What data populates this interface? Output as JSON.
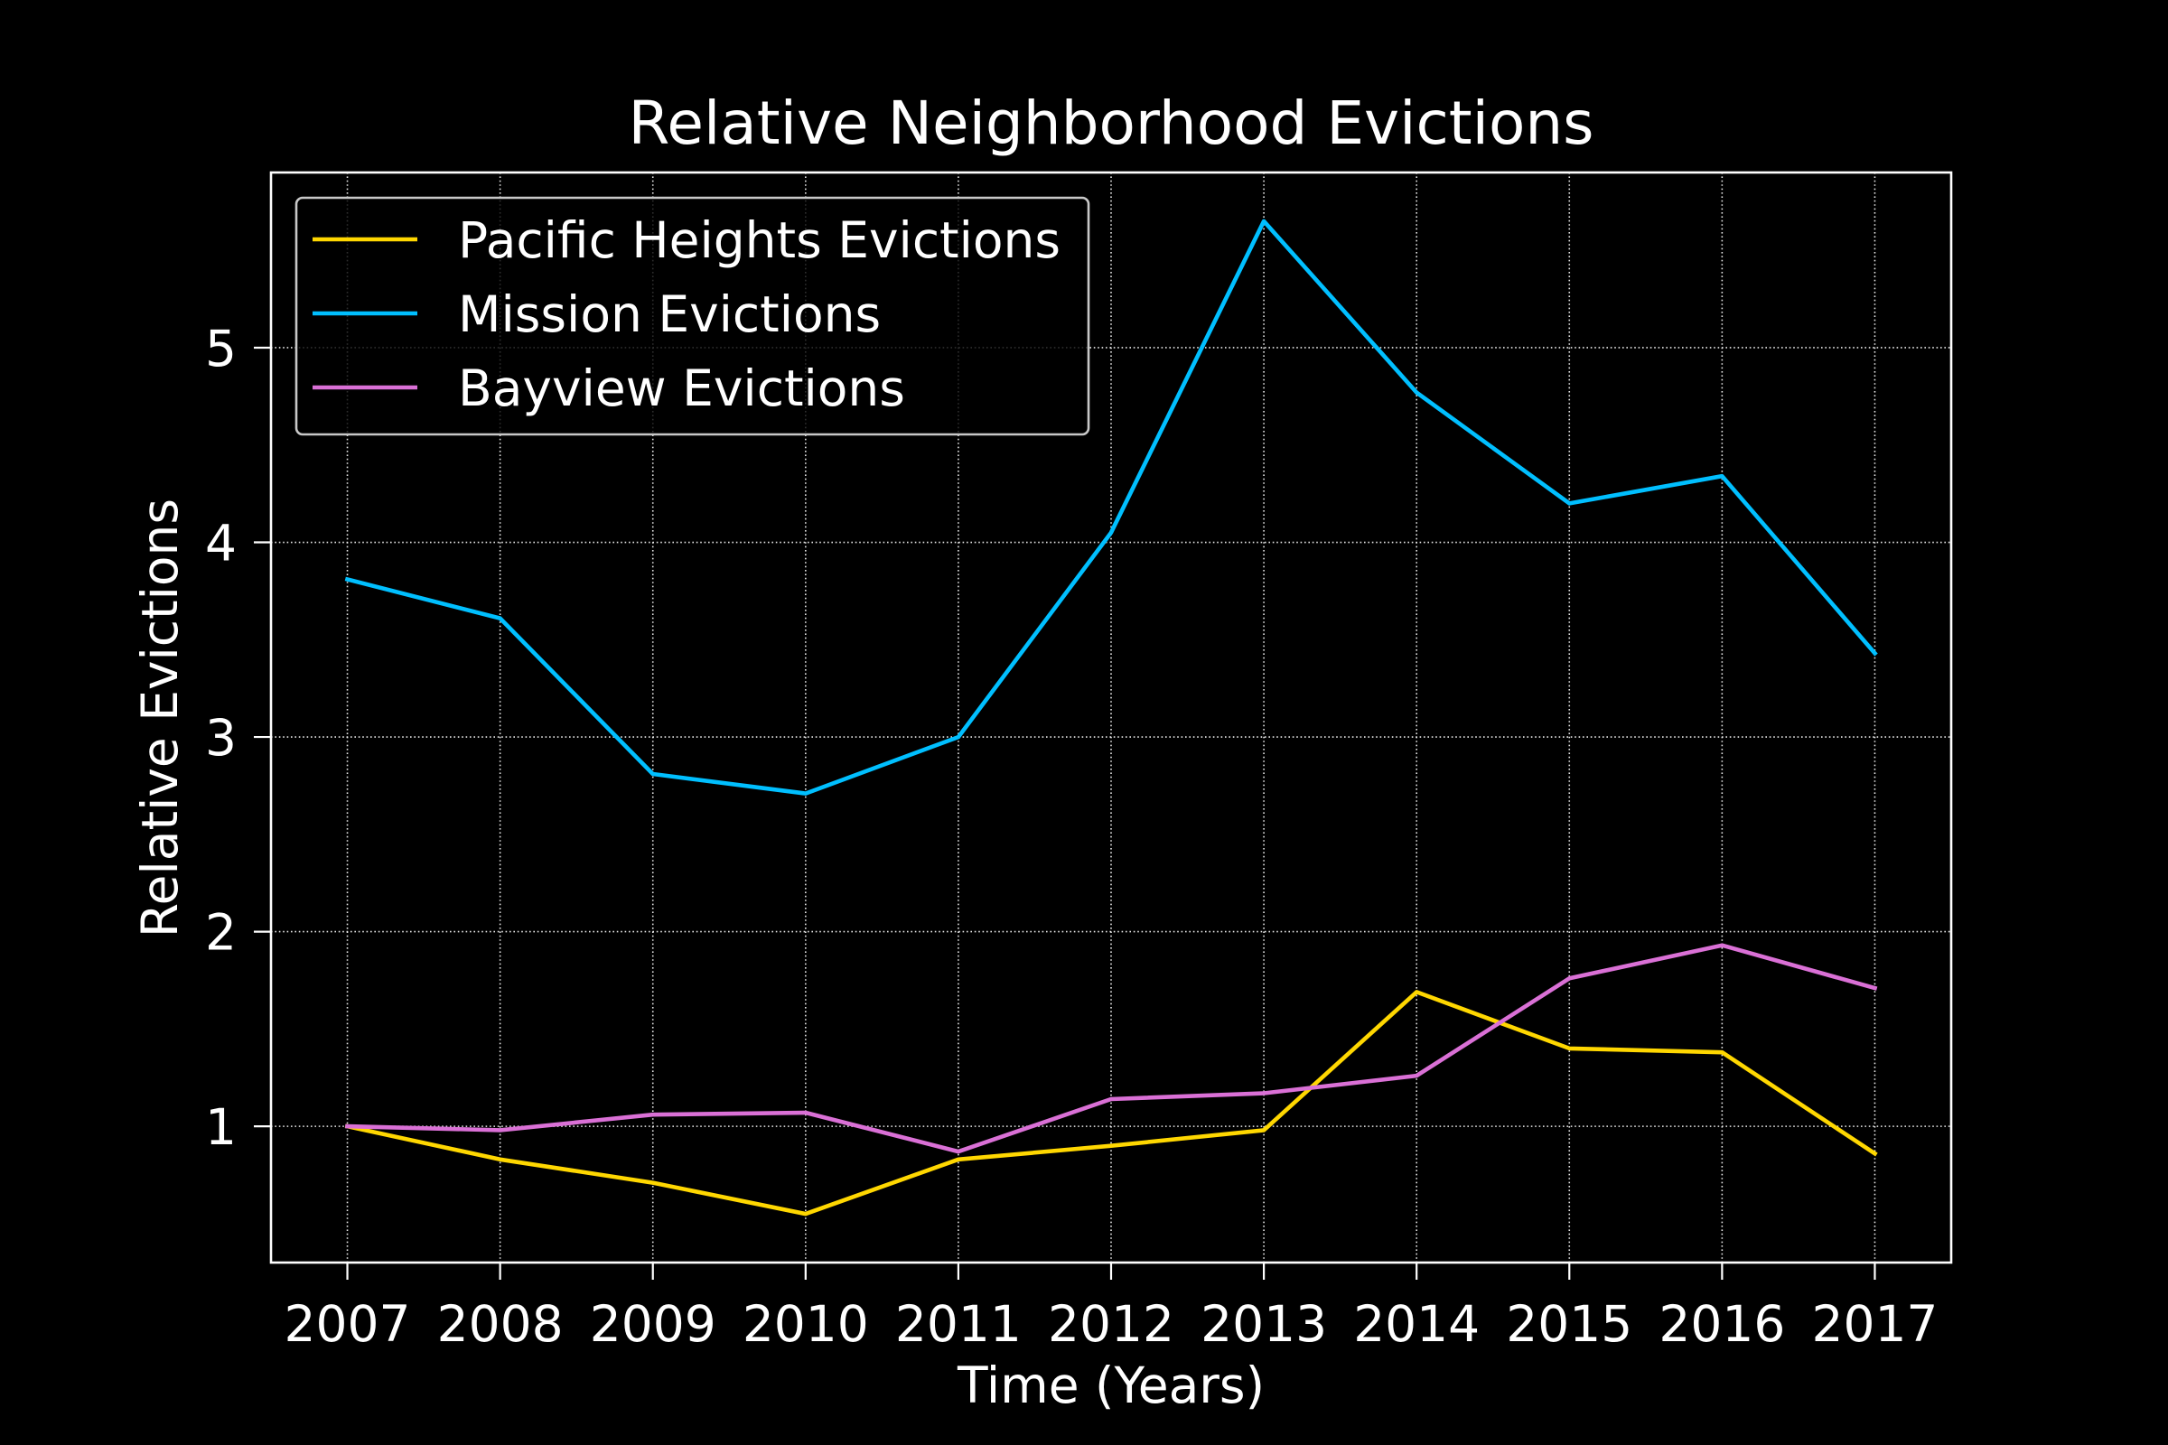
{
  "chart_data": {
    "type": "line",
    "title": "Relative Neighborhood Evictions",
    "xlabel": "Time (Years)",
    "ylabel": "Relative Evictions",
    "x": [
      2007,
      2008,
      2009,
      2010,
      2011,
      2012,
      2013,
      2014,
      2015,
      2016,
      2017
    ],
    "yticks": [
      1,
      2,
      3,
      4,
      5
    ],
    "xlim": [
      2006.5,
      2017.5
    ],
    "ylim": [
      0.3,
      5.9
    ],
    "grid": true,
    "legend": "upper left",
    "background_color": "#000000",
    "text_color": "#ffffff",
    "series": [
      {
        "name": "Pacific Heights Evictions",
        "color": "#ffd700",
        "values": [
          1.0,
          0.83,
          0.71,
          0.55,
          0.83,
          0.9,
          0.98,
          1.69,
          1.4,
          1.38,
          0.86
        ]
      },
      {
        "name": "Mission Evictions",
        "color": "#00bfff",
        "values": [
          3.81,
          3.61,
          2.81,
          2.71,
          3.0,
          4.05,
          5.65,
          4.77,
          4.2,
          4.34,
          3.43
        ]
      },
      {
        "name": "Bayview Evictions",
        "color": "#da70d6",
        "values": [
          1.0,
          0.98,
          1.06,
          1.07,
          0.87,
          1.14,
          1.17,
          1.26,
          1.76,
          1.93,
          1.71
        ]
      }
    ]
  }
}
